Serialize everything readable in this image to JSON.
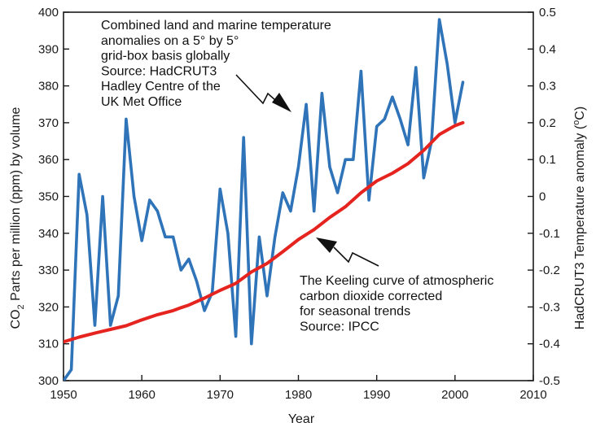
{
  "chart_data": {
    "type": "line",
    "xlabel": "Year",
    "ylabel_left": {
      "main": "CO",
      "sub": "2",
      "rest": " Parts per million (ppm) by volume"
    },
    "ylabel_right": {
      "main": "HadCRUT3 Temperature anomaly (",
      "sup": "o",
      "rest": "C)"
    },
    "xlim": [
      1950,
      2010
    ],
    "ylim_left": [
      300,
      400
    ],
    "ylim_right": [
      -0.5,
      0.5
    ],
    "x_ticks": [
      "1950",
      "1960",
      "1970",
      "1980",
      "1990",
      "2000",
      "2010"
    ],
    "y_left_ticks": [
      "300",
      "310",
      "320",
      "330",
      "340",
      "350",
      "360",
      "370",
      "380",
      "390",
      "400"
    ],
    "y_right_ticks": [
      "-0.5",
      "-0.4",
      "-0.3",
      "-0.2",
      "-0.1",
      "0",
      "0.1",
      "0.2",
      "0.3",
      "0.4",
      "0.5"
    ],
    "grid": false,
    "colors": {
      "temperature": "#2f73b8",
      "co2": "#e52420",
      "axis": "#1a1a1a"
    },
    "series": [
      {
        "axis": "right",
        "x": [
          1950,
          1951,
          1952,
          1953,
          1954,
          1955,
          1956,
          1957,
          1958,
          1959,
          1960,
          1961,
          1962,
          1963,
          1964,
          1965,
          1966,
          1967,
          1968,
          1969,
          1970,
          1971,
          1972,
          1973,
          1974,
          1975,
          1976,
          1977,
          1978,
          1979,
          1980,
          1981,
          1982,
          1983,
          1984,
          1985,
          1986,
          1987,
          1988,
          1989,
          1990,
          1991,
          1992,
          1993,
          1994,
          1995,
          1996,
          1997,
          1998,
          1999,
          2000,
          2001
        ],
        "values": [
          -0.5,
          -0.47,
          0.06,
          -0.05,
          -0.35,
          0.0,
          -0.35,
          -0.27,
          0.21,
          -0.0,
          -0.12,
          -0.01,
          -0.04,
          -0.11,
          -0.11,
          -0.2,
          -0.17,
          -0.23,
          -0.31,
          -0.26,
          0.02,
          -0.1,
          -0.38,
          0.16,
          -0.4,
          -0.11,
          -0.27,
          -0.11,
          0.01,
          -0.04,
          0.08,
          0.25,
          -0.04,
          0.28,
          0.08,
          0.01,
          0.1,
          0.1,
          0.34,
          -0.01,
          0.19,
          0.21,
          0.27,
          0.21,
          0.14,
          0.35,
          0.05,
          0.15,
          0.48,
          0.36,
          0.2,
          0.31
        ]
      },
      {
        "axis": "left",
        "x": [
          1950,
          1952,
          1954,
          1956,
          1958,
          1960,
          1962,
          1964,
          1965,
          1966,
          1968,
          1970,
          1972,
          1974,
          1976,
          1978,
          1980,
          1982,
          1984,
          1986,
          1988,
          1990,
          1992,
          1994,
          1996,
          1998,
          2000,
          2001
        ],
        "values": [
          310.5,
          311.8,
          312.9,
          313.9,
          314.9,
          316.5,
          317.9,
          319.0,
          319.8,
          320.5,
          322.4,
          324.5,
          326.4,
          329.5,
          331.8,
          335.0,
          338.3,
          341.0,
          344.3,
          347.2,
          351.0,
          354.2,
          356.3,
          358.9,
          362.5,
          366.8,
          369.2,
          370.0
        ]
      }
    ],
    "annotations": {
      "temperature": [
        "Combined land and marine temperature",
        "anomalies on a 5° by 5°",
        "grid-box basis globally",
        "Source: HadCRUT3",
        "Hadley Centre of the",
        "UK Met Office"
      ],
      "co2": [
        "The Keeling curve of atmospheric",
        "carbon dioxide corrected",
        "for seasonal trends",
        "Source: IPCC"
      ]
    }
  }
}
